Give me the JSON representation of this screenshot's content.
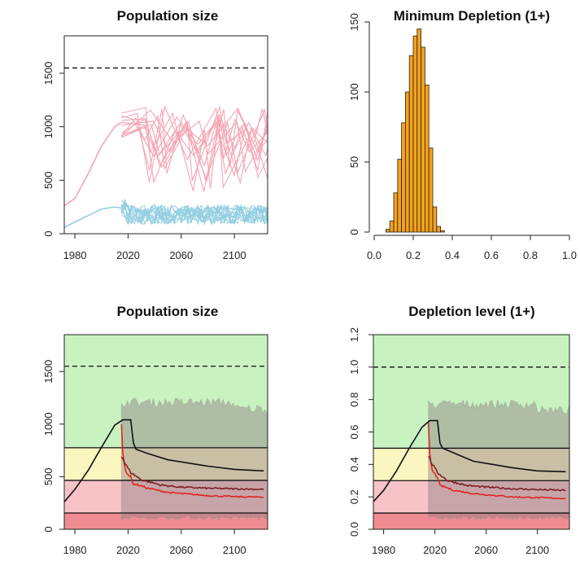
{
  "chart_data": [
    {
      "id": "panel-1",
      "type": "line",
      "title": "Population size",
      "xlabel": "",
      "ylabel": "",
      "xlim": [
        1972,
        2125
      ],
      "ylim": [
        0,
        1850
      ],
      "xticks": [
        1980,
        2020,
        2060,
        2100
      ],
      "yticks": [
        0,
        500,
        1000,
        1500
      ],
      "reference_lines": [
        {
          "y": 1550,
          "style": "dashed"
        }
      ],
      "series": [
        {
          "color": "#f4a5b3",
          "description_values": {
            "historic_x": [
              1972,
              1980,
              1990,
              2000,
              2010,
              2015
            ],
            "historic_y": [
              260,
              330,
              560,
              820,
              1000,
              1040
            ],
            "projection_range_y": [
              380,
              1190
            ]
          }
        },
        {
          "color": "#93cfe0",
          "description_values": {
            "historic_x": [
              1972,
              1980,
              1990,
              2000,
              2010,
              2015
            ],
            "historic_y": [
              60,
              110,
              170,
              230,
              250,
              240
            ],
            "projection_range_y": [
              50,
              320
            ]
          }
        }
      ]
    },
    {
      "id": "panel-2",
      "type": "bar",
      "title": "Minimum Depletion (1+)",
      "xlabel": "",
      "ylabel": "",
      "xlim": [
        0,
        1
      ],
      "ylim": [
        0,
        150
      ],
      "xticks": [
        0.0,
        0.2,
        0.4,
        0.6,
        0.8,
        1.0
      ],
      "xtick_labels": [
        "0.0",
        "0.2",
        "0.4",
        "0.6",
        "0.8",
        "1.0"
      ],
      "yticks": [
        0,
        50,
        100,
        150
      ],
      "bar_color": "#f5a21b",
      "bin_width": 0.02,
      "bin_starts": [
        0.06,
        0.08,
        0.1,
        0.12,
        0.14,
        0.16,
        0.18,
        0.2,
        0.22,
        0.24,
        0.26,
        0.28,
        0.3,
        0.32,
        0.34
      ],
      "values": [
        2,
        8,
        28,
        52,
        78,
        100,
        126,
        140,
        145,
        132,
        105,
        60,
        18,
        4,
        1
      ]
    },
    {
      "id": "panel-3",
      "type": "line",
      "title": "Population size",
      "xlabel": "",
      "ylabel": "",
      "xlim": [
        1972,
        2125
      ],
      "ylim": [
        0,
        1850
      ],
      "xticks": [
        1980,
        2020,
        2060,
        2100
      ],
      "yticks": [
        0,
        500,
        1000,
        1500
      ],
      "reference_lines": [
        {
          "y": 1550,
          "style": "dashed"
        },
        {
          "y": 775,
          "style": "solid"
        },
        {
          "y": 465,
          "style": "solid"
        },
        {
          "y": 155,
          "style": "solid"
        }
      ],
      "zones": [
        {
          "from": 775,
          "to": 1850,
          "color": "#c8f3c1"
        },
        {
          "from": 465,
          "to": 775,
          "color": "#fbf5bf"
        },
        {
          "from": 155,
          "to": 465,
          "color": "#f7c3c7"
        },
        {
          "from": 0,
          "to": 155,
          "color": "#ee8c91"
        }
      ],
      "envelope": {
        "x_start": 2015,
        "upper": 1250,
        "lower": 110
      },
      "series": [
        {
          "color": "#111111",
          "x": [
            1972,
            1980,
            1990,
            2000,
            2010,
            2016,
            2022,
            2024,
            2026,
            2035,
            2050,
            2065,
            2080,
            2100,
            2122
          ],
          "y": [
            260,
            380,
            560,
            780,
            990,
            1040,
            1040,
            820,
            760,
            720,
            660,
            630,
            600,
            570,
            555
          ]
        },
        {
          "color": "#e0201c",
          "x": [
            2015,
            2016,
            2018,
            2020,
            2022,
            2024,
            2028,
            2035,
            2050,
            2080,
            2100,
            2122
          ],
          "y": [
            1000,
            720,
            560,
            520,
            500,
            430,
            420,
            390,
            350,
            320,
            310,
            305
          ]
        },
        {
          "color": "#7a1a1a",
          "x": [
            2015,
            2018,
            2022,
            2030,
            2045,
            2060,
            2080,
            2100,
            2122
          ],
          "y": [
            700,
            620,
            540,
            470,
            420,
            400,
            390,
            385,
            380
          ]
        }
      ]
    },
    {
      "id": "panel-4",
      "type": "line",
      "title": "Depletion level (1+)",
      "xlabel": "",
      "ylabel": "",
      "xlim": [
        1972,
        2125
      ],
      "ylim": [
        0,
        1.2
      ],
      "xticks": [
        1980,
        2020,
        2060,
        2100
      ],
      "yticks": [
        0.0,
        0.2,
        0.4,
        0.6,
        0.8,
        1.0,
        1.2
      ],
      "ytick_labels": [
        "0.0",
        "0.2",
        "0.4",
        "0.6",
        "0.8",
        "1.0",
        "1.2"
      ],
      "reference_lines": [
        {
          "y": 1.0,
          "style": "dashed"
        },
        {
          "y": 0.5,
          "style": "solid"
        },
        {
          "y": 0.3,
          "style": "solid"
        },
        {
          "y": 0.1,
          "style": "solid"
        }
      ],
      "zones": [
        {
          "from": 0.5,
          "to": 1.2,
          "color": "#c8f3c1"
        },
        {
          "from": 0.3,
          "to": 0.5,
          "color": "#fbf5bf"
        },
        {
          "from": 0.1,
          "to": 0.3,
          "color": "#f7c3c7"
        },
        {
          "from": 0.0,
          "to": 0.1,
          "color": "#ee8c91"
        }
      ],
      "envelope": {
        "x_start": 2015,
        "upper": 0.8,
        "lower": 0.07
      },
      "series": [
        {
          "color": "#111111",
          "x": [
            1972,
            1980,
            1990,
            2000,
            2010,
            2016,
            2022,
            2024,
            2026,
            2035,
            2050,
            2065,
            2080,
            2100,
            2122
          ],
          "y": [
            0.17,
            0.24,
            0.36,
            0.5,
            0.63,
            0.67,
            0.67,
            0.53,
            0.5,
            0.47,
            0.42,
            0.4,
            0.38,
            0.36,
            0.355
          ]
        },
        {
          "color": "#e0201c",
          "x": [
            2015,
            2016,
            2018,
            2020,
            2022,
            2024,
            2028,
            2035,
            2050,
            2080,
            2100,
            2122
          ],
          "y": [
            0.65,
            0.46,
            0.36,
            0.34,
            0.32,
            0.27,
            0.26,
            0.24,
            0.22,
            0.2,
            0.195,
            0.19
          ]
        },
        {
          "color": "#7a1a1a",
          "x": [
            2015,
            2018,
            2022,
            2030,
            2045,
            2060,
            2080,
            2100,
            2122
          ],
          "y": [
            0.45,
            0.4,
            0.35,
            0.3,
            0.27,
            0.26,
            0.25,
            0.245,
            0.24
          ]
        }
      ]
    }
  ]
}
